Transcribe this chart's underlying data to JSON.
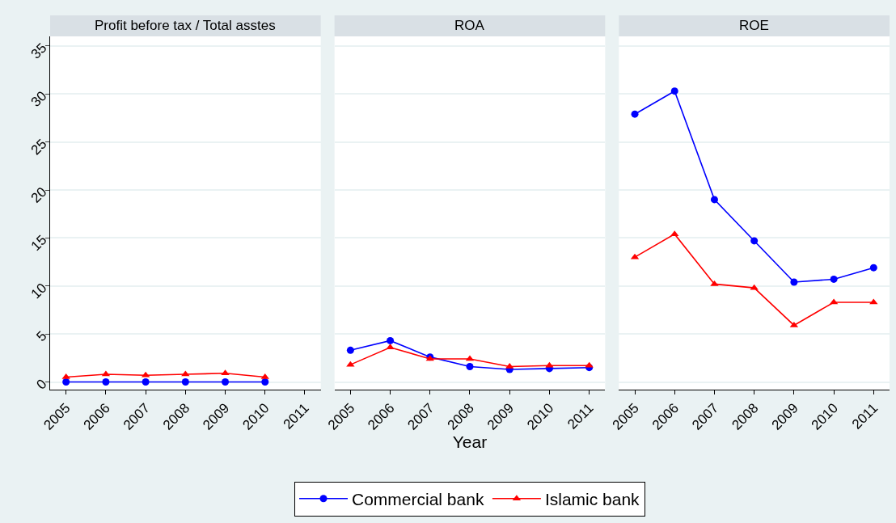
{
  "chart_data": [
    {
      "type": "line",
      "title": "Profit before tax / Total asstes",
      "ylabel": null,
      "categories": [
        "2005",
        "2006",
        "2007",
        "2008",
        "2009",
        "2010",
        "2011"
      ],
      "ylim": [
        -0.8,
        36
      ],
      "yticks": [
        0,
        5,
        10,
        15,
        20,
        25,
        30,
        35
      ],
      "grid": "y",
      "legend": "bottom",
      "series": [
        {
          "name": "Commercial bank",
          "color": "#0000ff",
          "marker": "circle",
          "values": [
            0,
            0,
            0,
            0,
            0,
            0,
            null
          ]
        },
        {
          "name": "Islamic bank",
          "color": "#ff0000",
          "marker": "triangle",
          "values": [
            0.5,
            0.8,
            0.7,
            0.8,
            0.9,
            0.5,
            null
          ]
        }
      ]
    },
    {
      "type": "line",
      "title": "ROA",
      "xlabel": "Year",
      "categories": [
        "2005",
        "2006",
        "2007",
        "2008",
        "2009",
        "2010",
        "2011"
      ],
      "ylim": [
        -0.8,
        36
      ],
      "yticks": [
        0,
        5,
        10,
        15,
        20,
        25,
        30,
        35
      ],
      "grid": "y",
      "tick_labels": "x",
      "series": [
        {
          "color": "#0000ff",
          "marker": "circle",
          "values": [
            3.3,
            4.3,
            2.6,
            1.6,
            1.3,
            1.4,
            1.5
          ]
        },
        {
          "color": "#ff0000",
          "marker": "triangle",
          "values": [
            1.8,
            3.6,
            2.4,
            2.4,
            1.6,
            1.7,
            1.7
          ]
        }
      ]
    },
    {
      "type": "line",
      "title": "ROE",
      "categories": [
        "2005",
        "2006",
        "2007",
        "2008",
        "2009",
        "2010",
        "2011"
      ],
      "ylim": [
        -0.8,
        36
      ],
      "yticks": [
        0,
        5,
        10,
        15,
        20,
        25,
        30,
        35
      ],
      "grid": "y",
      "tick_labels": "x",
      "series": [
        {
          "color": "#0000ff",
          "marker": "circle",
          "values": [
            27.9,
            30.3,
            19.0,
            14.7,
            10.4,
            10.7,
            11.9
          ]
        },
        {
          "color": "#ff0000",
          "marker": "triangle",
          "values": [
            13.0,
            15.4,
            10.2,
            9.8,
            5.9,
            8.3,
            8.3
          ]
        }
      ]
    }
  ]
}
